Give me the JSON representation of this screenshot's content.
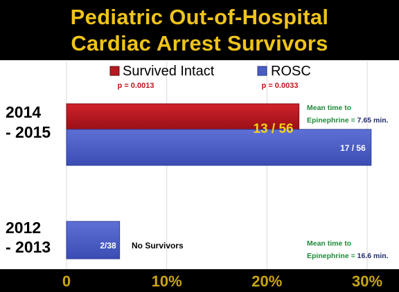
{
  "title_line1": "Pediatric Out-of-Hospital",
  "title_line2": "Cardiac Arrest Survivors",
  "legend": [
    {
      "label": "Survived Intact",
      "color": "#b51a22",
      "p_value": "p = 0.0013"
    },
    {
      "label": "ROSC",
      "color": "#4a5cc4",
      "p_value": "p = 0.0033"
    }
  ],
  "notes": {
    "top": {
      "line1": "Mean time to",
      "line2_label": "Epinephrine =",
      "line2_value": "7.65 min."
    },
    "bottom": {
      "line1": "Mean time to",
      "line2_label": "Epinephrine =",
      "line2_value": "16.6 min."
    }
  },
  "no_survivors_label": "No Survivors",
  "chart_data": {
    "type": "bar",
    "orientation": "horizontal",
    "categories": [
      "2014 - 2015",
      "2012 - 2013"
    ],
    "category_lines": [
      [
        "2014",
        "- 2015"
      ],
      [
        "2012",
        "- 2013"
      ]
    ],
    "series": [
      {
        "name": "Survived Intact",
        "values": [
          23.2,
          0
        ],
        "labels": [
          "13 / 56",
          ""
        ]
      },
      {
        "name": "ROSC",
        "values": [
          30.4,
          5.3
        ],
        "labels": [
          "17 / 56",
          "2/38"
        ]
      }
    ],
    "xlim": [
      0,
      30
    ],
    "xticks": [
      "0",
      "10%",
      "20%",
      "30%"
    ],
    "legend_position": "top",
    "grid": true
  }
}
